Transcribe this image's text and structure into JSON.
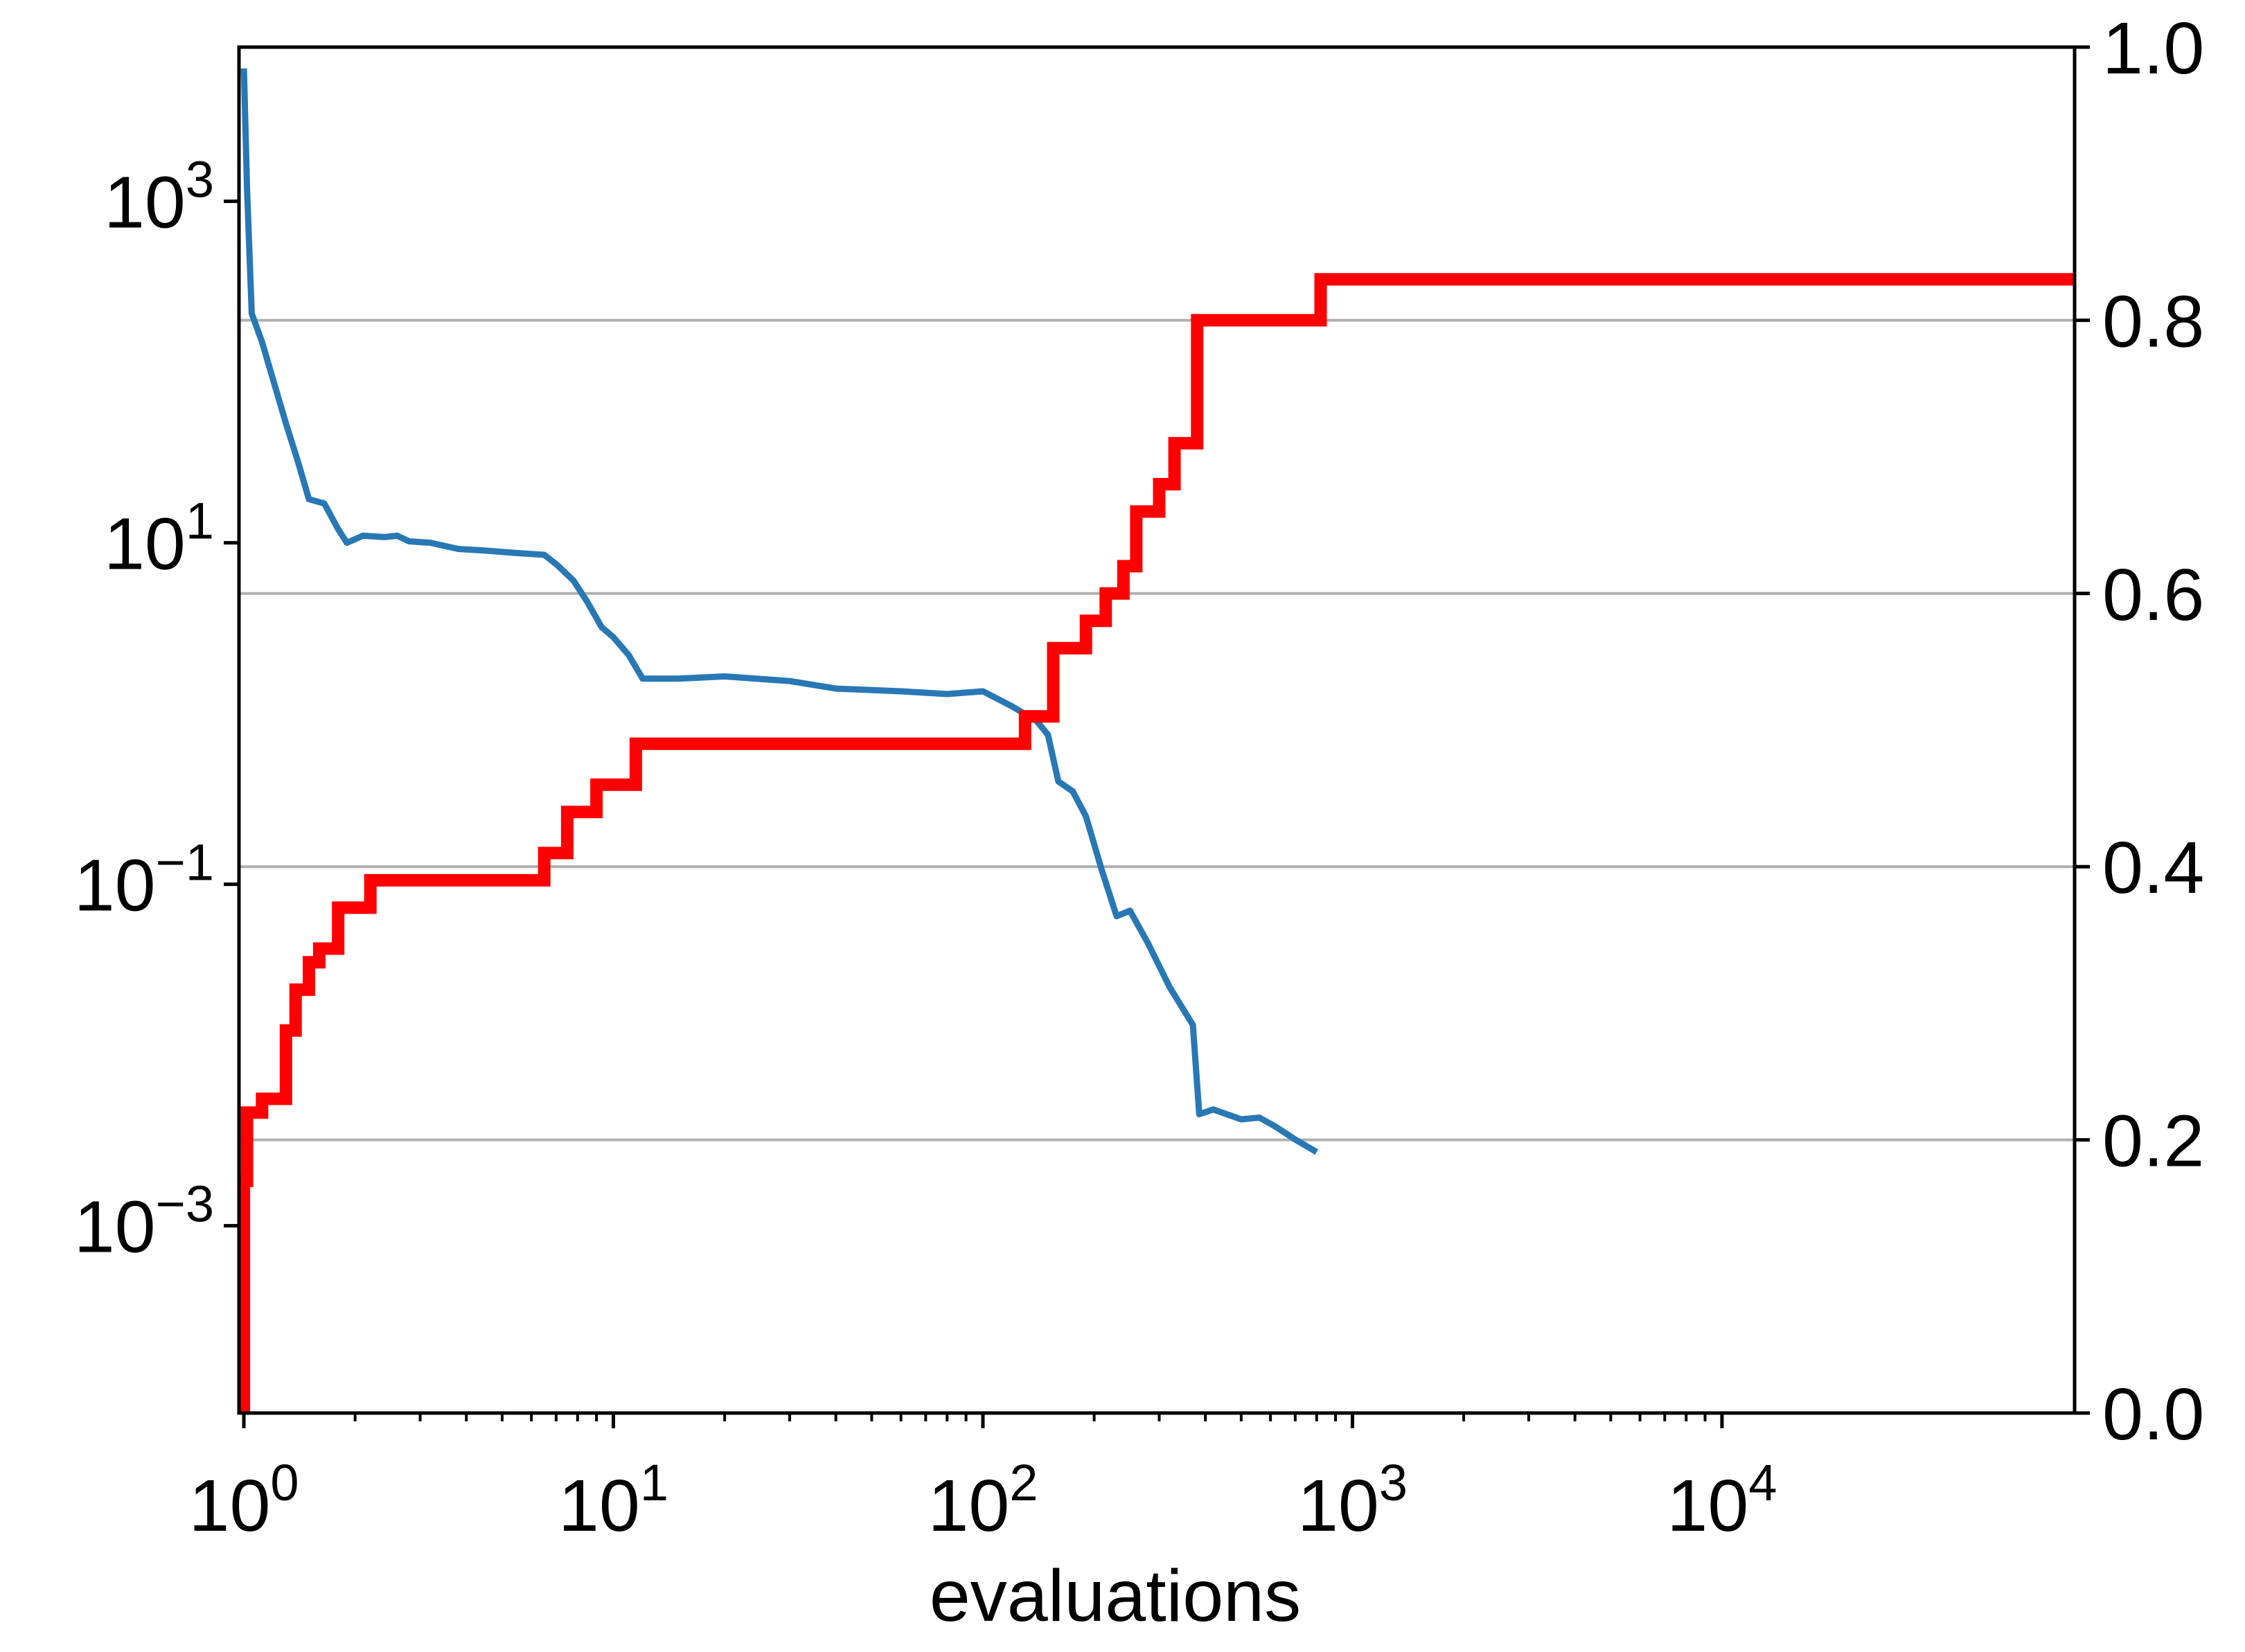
{
  "chart_data": {
    "type": "line",
    "title": "",
    "xlabel": "evaluations",
    "x_scale": "log",
    "xlim": [
      0.97,
      90000
    ],
    "x_ticks": [
      {
        "value": 1,
        "base": "10",
        "exp": "0"
      },
      {
        "value": 10,
        "base": "10",
        "exp": "1"
      },
      {
        "value": 100,
        "base": "10",
        "exp": "2"
      },
      {
        "value": 1000,
        "base": "10",
        "exp": "3"
      },
      {
        "value": 10000,
        "base": "10",
        "exp": "4"
      }
    ],
    "y_left": {
      "scale": "log",
      "ylim": [
        8e-05,
        8000
      ],
      "ticks": [
        {
          "value": 1000,
          "base": "10",
          "exp": "3"
        },
        {
          "value": 10,
          "base": "10",
          "exp": "1"
        },
        {
          "value": 0.1,
          "base": "10",
          "exp": "−1"
        },
        {
          "value": 0.001,
          "base": "10",
          "exp": "−3"
        }
      ]
    },
    "y_right": {
      "scale": "linear",
      "ylim": [
        0,
        1.0
      ],
      "ticks": [
        "0.0",
        "0.2",
        "0.4",
        "0.6",
        "0.8",
        "1.0"
      ],
      "grid": [
        0.2,
        0.4,
        0.6,
        0.8
      ]
    },
    "series": [
      {
        "axis": "left",
        "color": "#2878b5",
        "points": [
          [
            1.0,
            6000
          ],
          [
            1.02,
            1200
          ],
          [
            1.05,
            220
          ],
          [
            1.12,
            150
          ],
          [
            1.2,
            90
          ],
          [
            1.3,
            50
          ],
          [
            1.4,
            30
          ],
          [
            1.5,
            18
          ],
          [
            1.65,
            17
          ],
          [
            1.8,
            12
          ],
          [
            1.9,
            10
          ],
          [
            2.1,
            11
          ],
          [
            2.4,
            10.8
          ],
          [
            2.6,
            11
          ],
          [
            2.8,
            10.2
          ],
          [
            3.2,
            10
          ],
          [
            3.8,
            9.2
          ],
          [
            4.5,
            9
          ],
          [
            5.5,
            8.7
          ],
          [
            6.5,
            8.5
          ],
          [
            7.0,
            7.5
          ],
          [
            7.8,
            6
          ],
          [
            8.5,
            4.5
          ],
          [
            9.3,
            3.2
          ],
          [
            10.0,
            2.8
          ],
          [
            11.0,
            2.2
          ],
          [
            12.0,
            1.6
          ],
          [
            15.0,
            1.6
          ],
          [
            20.0,
            1.65
          ],
          [
            30.0,
            1.55
          ],
          [
            40.0,
            1.4
          ],
          [
            60.0,
            1.35
          ],
          [
            80.0,
            1.3
          ],
          [
            100.0,
            1.35
          ],
          [
            120.0,
            1.1
          ],
          [
            140.0,
            0.9
          ],
          [
            150.0,
            0.75
          ],
          [
            160.0,
            0.4
          ],
          [
            175.0,
            0.35
          ],
          [
            190.0,
            0.25
          ],
          [
            210.0,
            0.12
          ],
          [
            230.0,
            0.065
          ],
          [
            250.0,
            0.07
          ],
          [
            280.0,
            0.045
          ],
          [
            320.0,
            0.025
          ],
          [
            370.0,
            0.015
          ],
          [
            385.0,
            0.0045
          ],
          [
            420.0,
            0.0048
          ],
          [
            500.0,
            0.0042
          ],
          [
            560.0,
            0.0043
          ],
          [
            620.0,
            0.0038
          ],
          [
            700.0,
            0.0032
          ],
          [
            800.0,
            0.0027
          ]
        ]
      },
      {
        "axis": "right",
        "color": "#ff0000",
        "points": [
          [
            1.0,
            0.0
          ],
          [
            1.0,
            0.17
          ],
          [
            1.02,
            0.22
          ],
          [
            1.12,
            0.23
          ],
          [
            1.3,
            0.28
          ],
          [
            1.38,
            0.31
          ],
          [
            1.5,
            0.33
          ],
          [
            1.6,
            0.34
          ],
          [
            1.8,
            0.37
          ],
          [
            2.2,
            0.39
          ],
          [
            6.5,
            0.41
          ],
          [
            7.5,
            0.44
          ],
          [
            9.0,
            0.46
          ],
          [
            11.5,
            0.49
          ],
          [
            130.0,
            0.51
          ],
          [
            155.0,
            0.56
          ],
          [
            190.0,
            0.58
          ],
          [
            215.0,
            0.6
          ],
          [
            240.0,
            0.62
          ],
          [
            260.0,
            0.66
          ],
          [
            300.0,
            0.68
          ],
          [
            330.0,
            0.71
          ],
          [
            380.0,
            0.8
          ],
          [
            820.0,
            0.83
          ],
          [
            90000.0,
            0.83
          ]
        ]
      }
    ]
  }
}
